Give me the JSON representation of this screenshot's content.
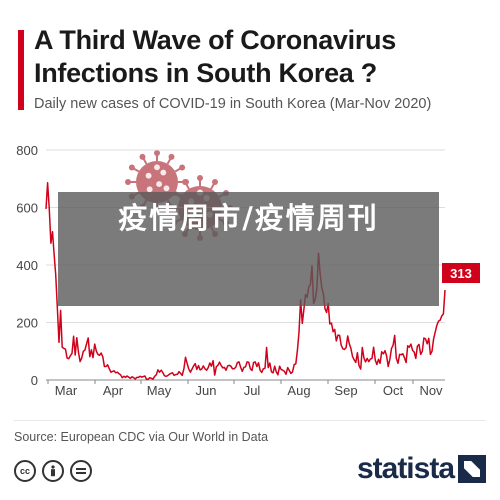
{
  "title": "A Third Wave of Coronavirus Infections in South Korea ?",
  "subtitle": "Daily new cases of COVID-19 in South Korea (Mar-Nov 2020)",
  "overlay_text": "疫情周市/疫情周刊",
  "source": "Source: European CDC via Our World in Data",
  "logo": "statista",
  "icons": [
    "cc-icon",
    "attribution-icon",
    "no-derivatives-icon"
  ],
  "colors": {
    "accent": "#d0021b",
    "line": "#d0021b",
    "grid": "#dddddd",
    "virus": "#c9737a",
    "overlay": "#5a5a5a"
  },
  "chart_data": {
    "type": "line",
    "title": "A Third Wave of Coronavirus Infections in South Korea ?",
    "subtitle": "Daily new cases of COVID-19 in South Korea (Mar-Nov 2020)",
    "xlabel": "",
    "ylabel": "",
    "ylim": [
      0,
      800
    ],
    "yticks": [
      "0",
      "200",
      "400",
      "600",
      "800"
    ],
    "month_labels": [
      "Mar",
      "Apr",
      "May",
      "Jun",
      "Jul",
      "Aug",
      "Sep",
      "Oct",
      "Nov"
    ],
    "grid": true,
    "end_label": "313",
    "series": [
      {
        "values": [
          595,
          686,
          600,
          476,
          516,
          438,
          367,
          248,
          131,
          242,
          114,
          110,
          107,
          76,
          74,
          84,
          93,
          152,
          87,
          147,
          98,
          64,
          76,
          100,
          104,
          125,
          146,
          81,
          105,
          78,
          125,
          101,
          89,
          86,
          94,
          81,
          47,
          47,
          53,
          39,
          27,
          30,
          32,
          25,
          27,
          22,
          18,
          8,
          13,
          9,
          14,
          10,
          6,
          11,
          8,
          4,
          9,
          9,
          13,
          10,
          12,
          14,
          2,
          3,
          8,
          6,
          3,
          13,
          18,
          35,
          27,
          34,
          26,
          15,
          13,
          15,
          20,
          23,
          25,
          16,
          19,
          20,
          29,
          23,
          16,
          39,
          79,
          58,
          39,
          27,
          38,
          49,
          57,
          37,
          50,
          35,
          38,
          49,
          39,
          34,
          43,
          59,
          48,
          67,
          17,
          46,
          51,
          62,
          50,
          42,
          44,
          34,
          49,
          51,
          48,
          39,
          39,
          45,
          61,
          63,
          45,
          30,
          44,
          46,
          63,
          62,
          39,
          33,
          61,
          63,
          47,
          60,
          34,
          26,
          39,
          41,
          113,
          43,
          59,
          28,
          25,
          48,
          28,
          18,
          48,
          36,
          34,
          30,
          20,
          43,
          33,
          23,
          28,
          54,
          56,
          103,
          166,
          279,
          197,
          246,
          297,
          288,
          324,
          332,
          397,
          266,
          280,
          320,
          441,
          371,
          323,
          299,
          248,
          235,
          267,
          195,
          198,
          168,
          176,
          136,
          156,
          155,
          121,
          109,
          106,
          113,
          153,
          126,
          110,
          82,
          70,
          61,
          95,
          50,
          38,
          113,
          77,
          63,
          75,
          64,
          73,
          75,
          114,
          69,
          54,
          72,
          58,
          98,
          91,
          102,
          84,
          47,
          73,
          110,
          121,
          155,
          76,
          58,
          89,
          88,
          91,
          77,
          61,
          119,
          114,
          125,
          103,
          97,
          75,
          118,
          124,
          89,
          100,
          146,
          143,
          126,
          145,
          89,
          100,
          143,
          168,
          191,
          205,
          208,
          223,
          230,
          313
        ]
      }
    ]
  }
}
